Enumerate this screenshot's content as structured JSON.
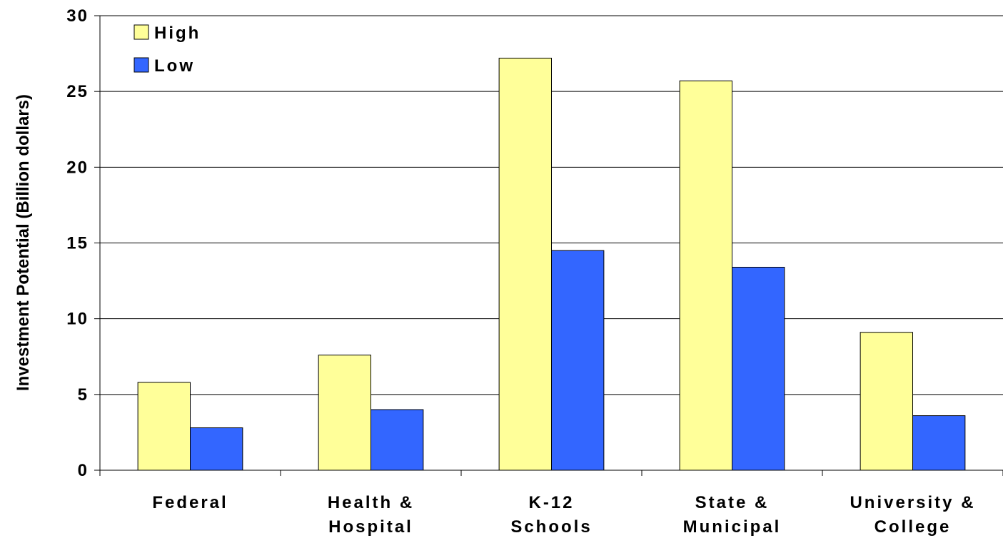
{
  "chart_data": {
    "type": "bar",
    "title": "",
    "xlabel": "",
    "ylabel": "Investment Potential (Billion dollars)",
    "ylim": [
      0,
      30
    ],
    "yticks": [
      0,
      5,
      10,
      15,
      20,
      25,
      30
    ],
    "grid": true,
    "legend_position": "top-left",
    "categories": [
      [
        "Federal"
      ],
      [
        "Health &",
        "Hospital"
      ],
      [
        "K-12",
        "Schools"
      ],
      [
        "State &",
        "Municipal"
      ],
      [
        "University &",
        "College"
      ]
    ],
    "series": [
      {
        "name": "High",
        "color": "#ffff99",
        "values": [
          5.8,
          7.6,
          27.2,
          25.7,
          9.1
        ]
      },
      {
        "name": "Low",
        "color": "#3366ff",
        "values": [
          2.8,
          4.0,
          14.5,
          13.4,
          3.6
        ]
      }
    ]
  }
}
